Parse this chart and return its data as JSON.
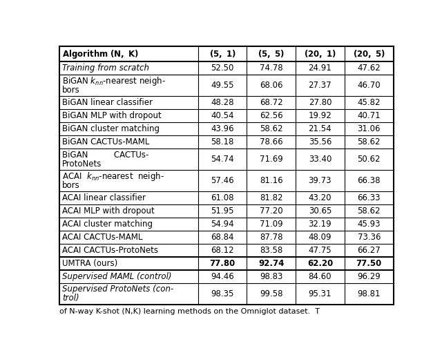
{
  "col_headers": [
    "Algorithm (N, K)",
    "(5, 1)",
    "(5, 5)",
    "(20, 1)",
    "(20, 5)"
  ],
  "rows": [
    {
      "label_lines": [
        "Training from scratch"
      ],
      "italic": true,
      "values": [
        "52.50",
        "74.78",
        "24.91",
        "47.62"
      ],
      "values_bold": [
        false,
        false,
        false,
        false
      ],
      "group": "scratch"
    },
    {
      "label_lines": [
        "BiGAN $k_{nn}$-nearest neigh-",
        "bors"
      ],
      "italic": false,
      "values": [
        "49.55",
        "68.06",
        "27.37",
        "46.70"
      ],
      "values_bold": [
        false,
        false,
        false,
        false
      ],
      "group": "bigan"
    },
    {
      "label_lines": [
        "BiGAN linear classifier"
      ],
      "italic": false,
      "values": [
        "48.28",
        "68.72",
        "27.80",
        "45.82"
      ],
      "values_bold": [
        false,
        false,
        false,
        false
      ],
      "group": "bigan"
    },
    {
      "label_lines": [
        "BiGAN MLP with dropout"
      ],
      "italic": false,
      "values": [
        "40.54",
        "62.56",
        "19.92",
        "40.71"
      ],
      "values_bold": [
        false,
        false,
        false,
        false
      ],
      "group": "bigan"
    },
    {
      "label_lines": [
        "BiGAN cluster matching"
      ],
      "italic": false,
      "values": [
        "43.96",
        "58.62",
        "21.54",
        "31.06"
      ],
      "values_bold": [
        false,
        false,
        false,
        false
      ],
      "group": "bigan"
    },
    {
      "label_lines": [
        "BiGAN CACTUs-MAML"
      ],
      "italic": false,
      "values": [
        "58.18",
        "78.66",
        "35.56",
        "58.62"
      ],
      "values_bold": [
        false,
        false,
        false,
        false
      ],
      "group": "bigan"
    },
    {
      "label_lines": [
        "BiGAN          CACTUs-",
        "ProtoNets"
      ],
      "italic": false,
      "values": [
        "54.74",
        "71.69",
        "33.40",
        "50.62"
      ],
      "values_bold": [
        false,
        false,
        false,
        false
      ],
      "group": "bigan"
    },
    {
      "label_lines": [
        "ACAI  $k_{nn}$-nearest  neigh-",
        "bors"
      ],
      "italic": false,
      "values": [
        "57.46",
        "81.16",
        "39.73",
        "66.38"
      ],
      "values_bold": [
        false,
        false,
        false,
        false
      ],
      "group": "acai"
    },
    {
      "label_lines": [
        "ACAI linear classifier"
      ],
      "italic": false,
      "values": [
        "61.08",
        "81.82",
        "43.20",
        "66.33"
      ],
      "values_bold": [
        false,
        false,
        false,
        false
      ],
      "group": "acai"
    },
    {
      "label_lines": [
        "ACAI MLP with dropout"
      ],
      "italic": false,
      "values": [
        "51.95",
        "77.20",
        "30.65",
        "58.62"
      ],
      "values_bold": [
        false,
        false,
        false,
        false
      ],
      "group": "acai"
    },
    {
      "label_lines": [
        "ACAI cluster matching"
      ],
      "italic": false,
      "values": [
        "54.94",
        "71.09",
        "32.19",
        "45.93"
      ],
      "values_bold": [
        false,
        false,
        false,
        false
      ],
      "group": "acai"
    },
    {
      "label_lines": [
        "ACAI CACTUs-MAML"
      ],
      "italic": false,
      "values": [
        "68.84",
        "87.78",
        "48.09",
        "73.36"
      ],
      "values_bold": [
        false,
        false,
        false,
        false
      ],
      "group": "acai"
    },
    {
      "label_lines": [
        "ACAI CACTUs-ProtoNets"
      ],
      "italic": false,
      "values": [
        "68.12",
        "83.58",
        "47.75",
        "66.27"
      ],
      "values_bold": [
        false,
        false,
        false,
        false
      ],
      "group": "acai"
    },
    {
      "label_lines": [
        "UMTRA (ours)"
      ],
      "italic": false,
      "values": [
        "77.80",
        "92.74",
        "62.20",
        "77.50"
      ],
      "values_bold": [
        true,
        true,
        true,
        true
      ],
      "group": "umtra"
    },
    {
      "label_lines": [
        "Supervised MAML (control)"
      ],
      "italic": true,
      "values": [
        "94.46",
        "98.83",
        "84.60",
        "96.29"
      ],
      "values_bold": [
        false,
        false,
        false,
        false
      ],
      "group": "supervised"
    },
    {
      "label_lines": [
        "Supervised ProtoNets (con-",
        "trol)"
      ],
      "italic": true,
      "values": [
        "98.35",
        "99.58",
        "95.31",
        "98.81"
      ],
      "values_bold": [
        false,
        false,
        false,
        false
      ],
      "group": "supervised"
    }
  ],
  "caption": "of N-way K-shot (N,K) learning methods on the Omniglot dataset.  T",
  "bg_color": "#ffffff",
  "text_color": "#000000"
}
